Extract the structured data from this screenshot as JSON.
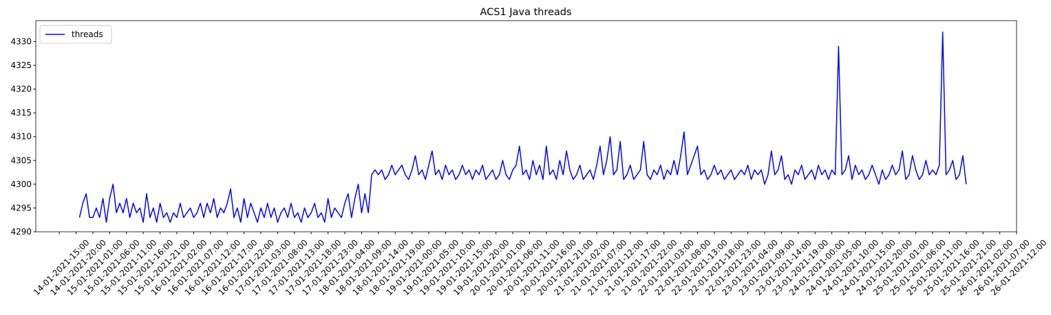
{
  "chart_data": {
    "type": "line",
    "title": "ACS1 Java threads",
    "x": [
      "14-01-2021-21:00",
      "14-01-2021-22:00",
      "14-01-2021-23:00",
      "15-01-2021-00:00",
      "15-01-2021-01:00",
      "15-01-2021-02:00",
      "15-01-2021-03:00",
      "15-01-2021-04:00",
      "15-01-2021-05:00",
      "15-01-2021-06:00",
      "15-01-2021-07:00",
      "15-01-2021-08:00",
      "15-01-2021-09:00",
      "15-01-2021-10:00",
      "15-01-2021-11:00",
      "15-01-2021-12:00",
      "15-01-2021-13:00",
      "15-01-2021-14:00",
      "15-01-2021-15:00",
      "15-01-2021-16:00",
      "15-01-2021-17:00",
      "15-01-2021-18:00",
      "15-01-2021-19:00",
      "15-01-2021-20:00",
      "15-01-2021-21:00",
      "15-01-2021-22:00",
      "15-01-2021-23:00",
      "16-01-2021-00:00",
      "16-01-2021-01:00",
      "16-01-2021-02:00",
      "16-01-2021-03:00",
      "16-01-2021-04:00",
      "16-01-2021-05:00",
      "16-01-2021-06:00",
      "16-01-2021-07:00",
      "16-01-2021-08:00",
      "16-01-2021-09:00",
      "16-01-2021-10:00",
      "16-01-2021-11:00",
      "16-01-2021-12:00",
      "16-01-2021-13:00",
      "16-01-2021-14:00",
      "16-01-2021-15:00",
      "16-01-2021-16:00",
      "16-01-2021-17:00",
      "16-01-2021-18:00",
      "16-01-2021-19:00",
      "16-01-2021-20:00",
      "16-01-2021-21:00",
      "16-01-2021-22:00",
      "16-01-2021-23:00",
      "17-01-2021-00:00",
      "17-01-2021-01:00",
      "17-01-2021-02:00",
      "17-01-2021-03:00",
      "17-01-2021-04:00",
      "17-01-2021-05:00",
      "17-01-2021-06:00",
      "17-01-2021-07:00",
      "17-01-2021-08:00",
      "17-01-2021-09:00",
      "17-01-2021-10:00",
      "17-01-2021-11:00",
      "17-01-2021-12:00",
      "17-01-2021-13:00",
      "17-01-2021-14:00",
      "17-01-2021-15:00",
      "17-01-2021-16:00",
      "17-01-2021-17:00",
      "17-01-2021-18:00",
      "17-01-2021-19:00",
      "17-01-2021-20:00",
      "17-01-2021-21:00",
      "17-01-2021-22:00",
      "17-01-2021-23:00",
      "18-01-2021-00:00",
      "18-01-2021-01:00",
      "18-01-2021-02:00",
      "18-01-2021-03:00",
      "18-01-2021-04:00",
      "18-01-2021-05:00",
      "18-01-2021-06:00",
      "18-01-2021-07:00",
      "18-01-2021-08:00",
      "18-01-2021-09:00",
      "18-01-2021-10:00",
      "18-01-2021-11:00",
      "18-01-2021-12:00",
      "18-01-2021-13:00",
      "18-01-2021-14:00",
      "18-01-2021-15:00",
      "18-01-2021-16:00",
      "18-01-2021-17:00",
      "18-01-2021-18:00",
      "18-01-2021-19:00",
      "18-01-2021-20:00",
      "18-01-2021-21:00",
      "18-01-2021-22:00",
      "18-01-2021-23:00",
      "19-01-2021-00:00",
      "19-01-2021-01:00",
      "19-01-2021-02:00",
      "19-01-2021-03:00",
      "19-01-2021-04:00",
      "19-01-2021-05:00",
      "19-01-2021-06:00",
      "19-01-2021-07:00",
      "19-01-2021-08:00",
      "19-01-2021-09:00",
      "19-01-2021-10:00",
      "19-01-2021-11:00",
      "19-01-2021-12:00",
      "19-01-2021-13:00",
      "19-01-2021-14:00",
      "19-01-2021-15:00",
      "19-01-2021-16:00",
      "19-01-2021-17:00",
      "19-01-2021-18:00",
      "19-01-2021-19:00",
      "19-01-2021-20:00",
      "19-01-2021-21:00",
      "19-01-2021-22:00",
      "19-01-2021-23:00",
      "20-01-2021-00:00",
      "20-01-2021-01:00",
      "20-01-2021-02:00",
      "20-01-2021-03:00",
      "20-01-2021-04:00",
      "20-01-2021-05:00",
      "20-01-2021-06:00",
      "20-01-2021-07:00",
      "20-01-2021-08:00",
      "20-01-2021-09:00",
      "20-01-2021-10:00",
      "20-01-2021-11:00",
      "20-01-2021-12:00",
      "20-01-2021-13:00",
      "20-01-2021-14:00",
      "20-01-2021-15:00",
      "20-01-2021-16:00",
      "20-01-2021-17:00",
      "20-01-2021-18:00",
      "20-01-2021-19:00",
      "20-01-2021-20:00",
      "20-01-2021-21:00",
      "20-01-2021-22:00",
      "20-01-2021-23:00",
      "21-01-2021-00:00",
      "21-01-2021-01:00",
      "21-01-2021-02:00",
      "21-01-2021-03:00",
      "21-01-2021-04:00",
      "21-01-2021-05:00",
      "21-01-2021-06:00",
      "21-01-2021-07:00",
      "21-01-2021-08:00",
      "21-01-2021-09:00",
      "21-01-2021-10:00",
      "21-01-2021-11:00",
      "21-01-2021-12:00",
      "21-01-2021-13:00",
      "21-01-2021-14:00",
      "21-01-2021-15:00",
      "21-01-2021-16:00",
      "21-01-2021-17:00",
      "21-01-2021-18:00",
      "21-01-2021-19:00",
      "21-01-2021-20:00",
      "21-01-2021-21:00",
      "21-01-2021-22:00",
      "21-01-2021-23:00",
      "22-01-2021-00:00",
      "22-01-2021-01:00",
      "22-01-2021-02:00",
      "22-01-2021-03:00",
      "22-01-2021-04:00",
      "22-01-2021-05:00",
      "22-01-2021-06:00",
      "22-01-2021-07:00",
      "22-01-2021-08:00",
      "22-01-2021-09:00",
      "22-01-2021-10:00",
      "22-01-2021-11:00",
      "22-01-2021-12:00",
      "22-01-2021-13:00",
      "22-01-2021-14:00",
      "22-01-2021-15:00",
      "22-01-2021-16:00",
      "22-01-2021-17:00",
      "22-01-2021-18:00",
      "22-01-2021-19:00",
      "22-01-2021-20:00",
      "22-01-2021-21:00",
      "22-01-2021-22:00",
      "22-01-2021-23:00",
      "23-01-2021-00:00",
      "23-01-2021-01:00",
      "23-01-2021-02:00",
      "23-01-2021-03:00",
      "23-01-2021-04:00",
      "23-01-2021-05:00",
      "23-01-2021-06:00",
      "23-01-2021-07:00",
      "23-01-2021-08:00",
      "23-01-2021-09:00",
      "23-01-2021-10:00",
      "23-01-2021-11:00",
      "23-01-2021-12:00",
      "23-01-2021-13:00",
      "23-01-2021-14:00",
      "23-01-2021-15:00",
      "23-01-2021-16:00",
      "23-01-2021-17:00",
      "23-01-2021-18:00",
      "23-01-2021-19:00",
      "23-01-2021-20:00",
      "23-01-2021-21:00",
      "23-01-2021-22:00",
      "23-01-2021-23:00",
      "24-01-2021-00:00",
      "24-01-2021-01:00",
      "24-01-2021-02:00",
      "24-01-2021-03:00",
      "24-01-2021-04:00",
      "24-01-2021-05:00",
      "24-01-2021-06:00",
      "24-01-2021-07:00",
      "24-01-2021-08:00",
      "24-01-2021-09:00",
      "24-01-2021-10:00",
      "24-01-2021-11:00",
      "24-01-2021-12:00",
      "24-01-2021-13:00",
      "24-01-2021-14:00",
      "24-01-2021-15:00",
      "24-01-2021-16:00",
      "24-01-2021-17:00",
      "24-01-2021-18:00",
      "24-01-2021-19:00",
      "24-01-2021-20:00",
      "24-01-2021-21:00",
      "24-01-2021-22:00",
      "24-01-2021-23:00",
      "25-01-2021-00:00",
      "25-01-2021-01:00",
      "25-01-2021-02:00",
      "25-01-2021-03:00",
      "25-01-2021-04:00",
      "25-01-2021-05:00",
      "25-01-2021-06:00",
      "25-01-2021-07:00",
      "25-01-2021-08:00",
      "25-01-2021-09:00",
      "25-01-2021-10:00",
      "25-01-2021-11:00",
      "25-01-2021-12:00",
      "25-01-2021-13:00",
      "25-01-2021-14:00",
      "25-01-2021-15:00",
      "25-01-2021-16:00",
      "25-01-2021-17:00",
      "25-01-2021-18:00",
      "25-01-2021-19:00",
      "25-01-2021-20:00",
      "25-01-2021-21:00"
    ],
    "series": [
      {
        "name": "threads",
        "color": "#0000ff",
        "values": [
          4293,
          4296,
          4298,
          4293,
          4293,
          4295,
          4293,
          4297,
          4292,
          4297,
          4300,
          4294,
          4296,
          4294,
          4297,
          4293,
          4296,
          4294,
          4295,
          4292,
          4298,
          4293,
          4295,
          4292,
          4296,
          4293,
          4294,
          4292,
          4294,
          4293,
          4296,
          4293,
          4294,
          4295,
          4293,
          4294,
          4296,
          4293,
          4296,
          4294,
          4297,
          4293,
          4295,
          4294,
          4296,
          4299,
          4293,
          4295,
          4292,
          4297,
          4293,
          4296,
          4294,
          4292,
          4295,
          4293,
          4296,
          4293,
          4295,
          4292,
          4294,
          4295,
          4293,
          4296,
          4293,
          4294,
          4292,
          4295,
          4293,
          4294,
          4296,
          4293,
          4294,
          4292,
          4297,
          4293,
          4295,
          4294,
          4293,
          4296,
          4298,
          4293,
          4297,
          4300,
          4294,
          4298,
          4294,
          4302,
          4303,
          4302,
          4303,
          4301,
          4302,
          4304,
          4302,
          4303,
          4304,
          4302,
          4301,
          4303,
          4306,
          4302,
          4303,
          4301,
          4304,
          4307,
          4302,
          4303,
          4301,
          4304,
          4302,
          4303,
          4301,
          4302,
          4304,
          4302,
          4303,
          4301,
          4303,
          4302,
          4304,
          4301,
          4302,
          4303,
          4301,
          4302,
          4305,
          4302,
          4301,
          4303,
          4304,
          4308,
          4302,
          4303,
          4301,
          4305,
          4302,
          4304,
          4301,
          4308,
          4302,
          4303,
          4301,
          4305,
          4302,
          4307,
          4303,
          4301,
          4302,
          4304,
          4301,
          4302,
          4303,
          4301,
          4304,
          4308,
          4302,
          4305,
          4310,
          4302,
          4303,
          4309,
          4301,
          4302,
          4304,
          4301,
          4302,
          4303,
          4309,
          4302,
          4301,
          4303,
          4302,
          4304,
          4301,
          4303,
          4302,
          4305,
          4302,
          4306,
          4311,
          4302,
          4304,
          4306,
          4308,
          4302,
          4303,
          4301,
          4302,
          4304,
          4302,
          4303,
          4301,
          4302,
          4303,
          4301,
          4302,
          4303,
          4302,
          4304,
          4301,
          4303,
          4302,
          4303,
          4300,
          4302,
          4307,
          4302,
          4303,
          4306,
          4301,
          4302,
          4300,
          4303,
          4302,
          4304,
          4301,
          4302,
          4303,
          4301,
          4304,
          4302,
          4303,
          4301,
          4303,
          4302,
          4329,
          4302,
          4303,
          4306,
          4301,
          4304,
          4302,
          4303,
          4301,
          4302,
          4304,
          4302,
          4300,
          4303,
          4301,
          4302,
          4304,
          4302,
          4303,
          4307,
          4301,
          4302,
          4306,
          4303,
          4301,
          4302,
          4305,
          4302,
          4303,
          4302,
          4304,
          4332,
          4302,
          4303,
          4305,
          4301,
          4302,
          4306,
          4300
        ]
      }
    ],
    "xlim": [
      "14-01-2021-08:00",
      "26-01-2021-12:00"
    ],
    "xticks": [
      "14-01-2021-15:00",
      "14-01-2021-20:00",
      "15-01-2021-01:00",
      "15-01-2021-06:00",
      "15-01-2021-11:00",
      "15-01-2021-16:00",
      "15-01-2021-21:00",
      "16-01-2021-02:00",
      "16-01-2021-07:00",
      "16-01-2021-12:00",
      "16-01-2021-17:00",
      "16-01-2021-22:00",
      "17-01-2021-03:00",
      "17-01-2021-08:00",
      "17-01-2021-13:00",
      "17-01-2021-18:00",
      "17-01-2021-23:00",
      "18-01-2021-04:00",
      "18-01-2021-09:00",
      "18-01-2021-14:00",
      "18-01-2021-19:00",
      "19-01-2021-00:00",
      "19-01-2021-05:00",
      "19-01-2021-10:00",
      "19-01-2021-15:00",
      "19-01-2021-20:00",
      "20-01-2021-01:00",
      "20-01-2021-06:00",
      "20-01-2021-11:00",
      "20-01-2021-16:00",
      "20-01-2021-21:00",
      "21-01-2021-02:00",
      "21-01-2021-07:00",
      "21-01-2021-12:00",
      "21-01-2021-17:00",
      "21-01-2021-22:00",
      "22-01-2021-03:00",
      "22-01-2021-08:00",
      "22-01-2021-13:00",
      "22-01-2021-18:00",
      "22-01-2021-23:00",
      "23-01-2021-04:00",
      "23-01-2021-09:00",
      "23-01-2021-14:00",
      "23-01-2021-19:00",
      "24-01-2021-00:00",
      "24-01-2021-05:00",
      "24-01-2021-10:00",
      "24-01-2021-15:00",
      "24-01-2021-20:00",
      "25-01-2021-01:00",
      "25-01-2021-06:00",
      "25-01-2021-11:00",
      "25-01-2021-16:00",
      "25-01-2021-21:00",
      "26-01-2021-02:00",
      "26-01-2021-07:00",
      "26-01-2021-12:00"
    ],
    "ylim": [
      4290,
      4334.4
    ],
    "yticks": [
      4290,
      4295,
      4300,
      4305,
      4310,
      4315,
      4320,
      4325,
      4330
    ],
    "legend": "upper left"
  }
}
